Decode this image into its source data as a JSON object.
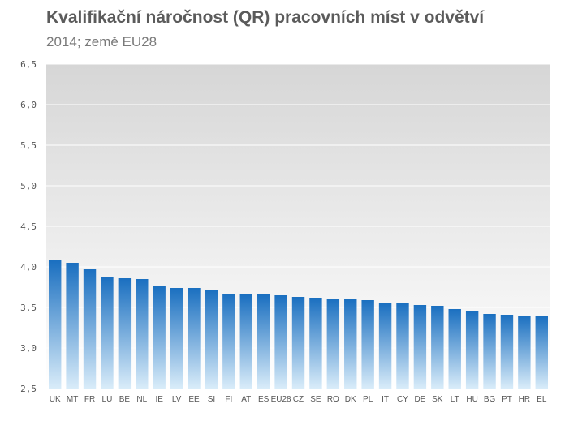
{
  "title": "Kvalifikační náročnost (QR)  pracovních míst v odvětví",
  "subtitle": "2014; země EU28",
  "colors": {
    "bar_top": "#1a6fc0",
    "bar_bottom": "#d9ecf9",
    "plot_bg_top": "#d6d6d6",
    "plot_bg_bottom": "#ffffff",
    "grid": "#ffffff"
  },
  "chart_data": {
    "type": "bar",
    "title": "Kvalifikační náročnost (QR)  pracovních míst v odvětví",
    "subtitle": "2014; země EU28",
    "xlabel": "",
    "ylabel": "",
    "ylim": [
      2.5,
      6.5
    ],
    "yticks": [
      "2,5",
      "3,0",
      "3,5",
      "4,0",
      "4,5",
      "5,0",
      "5,5",
      "6,0",
      "6,5"
    ],
    "grid": true,
    "legend": "none",
    "categories": [
      "UK",
      "MT",
      "FR",
      "LU",
      "BE",
      "NL",
      "IE",
      "LV",
      "EE",
      "SI",
      "FI",
      "AT",
      "ES",
      "EU28",
      "CZ",
      "SE",
      "RO",
      "DK",
      "PL",
      "IT",
      "CY",
      "DE",
      "SK",
      "LT",
      "HU",
      "BG",
      "PT",
      "HR",
      "EL"
    ],
    "values": [
      4.08,
      4.05,
      3.97,
      3.88,
      3.86,
      3.85,
      3.76,
      3.74,
      3.74,
      3.72,
      3.67,
      3.66,
      3.66,
      3.65,
      3.63,
      3.62,
      3.61,
      3.6,
      3.59,
      3.55,
      3.55,
      3.53,
      3.52,
      3.48,
      3.45,
      3.42,
      3.41,
      3.4,
      3.39
    ]
  }
}
